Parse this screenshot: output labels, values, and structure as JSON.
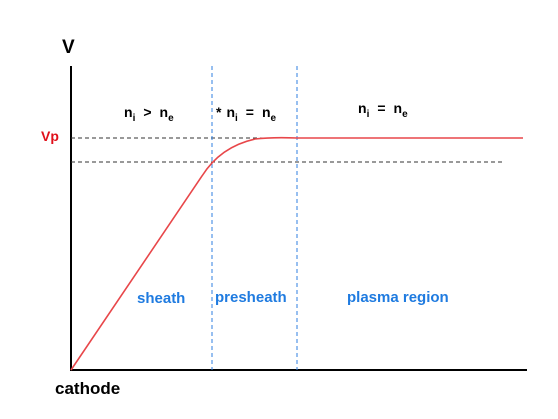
{
  "axes": {
    "y_label": "V",
    "x_label": "cathode"
  },
  "levels": {
    "vp_label": "Vp"
  },
  "regions": {
    "sheath": {
      "condition": {
        "lhs": "n",
        "lhs_sub": "i",
        "op": ">",
        "rhs": "n",
        "rhs_sub": "e",
        "prefix": ""
      },
      "name": "sheath"
    },
    "presheath": {
      "condition": {
        "lhs": "n",
        "lhs_sub": "i",
        "op": "=",
        "rhs": "n",
        "rhs_sub": "e",
        "prefix": "*"
      },
      "name": "presheath"
    },
    "plasma": {
      "condition": {
        "lhs": "n",
        "lhs_sub": "i",
        "op": "=",
        "rhs": "n",
        "rhs_sub": "e",
        "prefix": ""
      },
      "name": "plasma region"
    }
  },
  "colors": {
    "axis": "#000000",
    "curve": "#e8474a",
    "vp_label": "#e0101a",
    "boundary": "#2f7fe0",
    "region_label": "#1f7be0",
    "reference_line": "#333333"
  }
}
